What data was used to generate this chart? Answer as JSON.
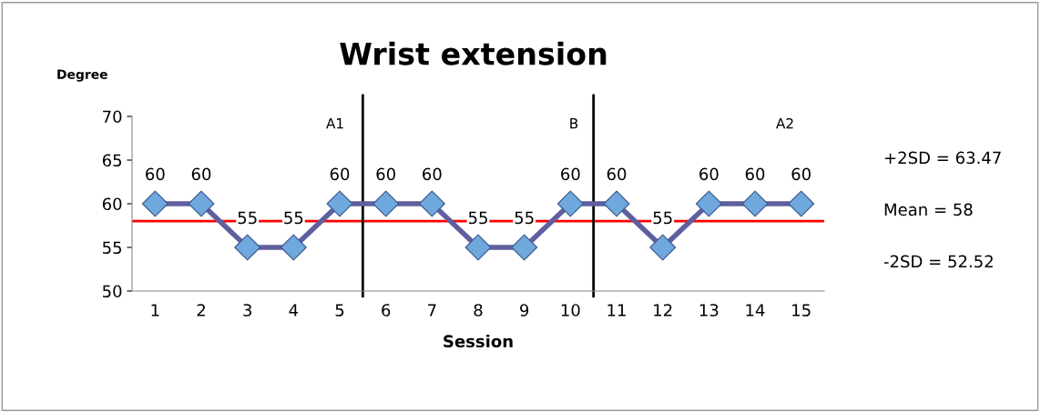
{
  "chart_data": {
    "type": "line",
    "title": "Wrist extension",
    "xlabel": "Session",
    "ylabel": "Degree",
    "x": [
      1,
      2,
      3,
      4,
      5,
      6,
      7,
      8,
      9,
      10,
      11,
      12,
      13,
      14,
      15
    ],
    "series": [
      {
        "color": "#5f5f9f",
        "values": [
          60,
          60,
          55,
          55,
          60,
          60,
          60,
          55,
          55,
          60,
          60,
          55,
          60,
          60,
          60
        ],
        "colors": [
          "#6fa8dc",
          "#6fa8dc",
          "#6fa8dc",
          "#6fa8dc",
          "#6fa8dc",
          "#6fa8dc",
          "#6fa8dc",
          "#6fa8dc",
          "#6fa8dc",
          "#6fa8dc",
          "#6fa8dc",
          "#6fa8dc",
          "#6fa8dc",
          "#6fa8dc",
          "#6fa8dc"
        ]
      }
    ],
    "xlim": [
      0.5,
      15.5
    ],
    "xticks": [
      1,
      2,
      3,
      4,
      5,
      6,
      7,
      8,
      9,
      10,
      11,
      12,
      13,
      14,
      15
    ],
    "ylim": [
      50,
      70
    ],
    "yticks": [
      50,
      55,
      60,
      65,
      70
    ],
    "marker": "diamond",
    "data_labels": true,
    "grid": false,
    "ref_lines": [
      {
        "axis": "y",
        "value": 58,
        "color": "#ff0000"
      },
      {
        "axis": "x",
        "value": 5.5,
        "color": "#000000"
      },
      {
        "axis": "x",
        "value": 10.5,
        "color": "#000000"
      }
    ],
    "annotations": [
      "A1",
      "B",
      "A2",
      "+2SD = 63.47",
      "Mean = 58",
      "-2SD = 52.52"
    ]
  }
}
